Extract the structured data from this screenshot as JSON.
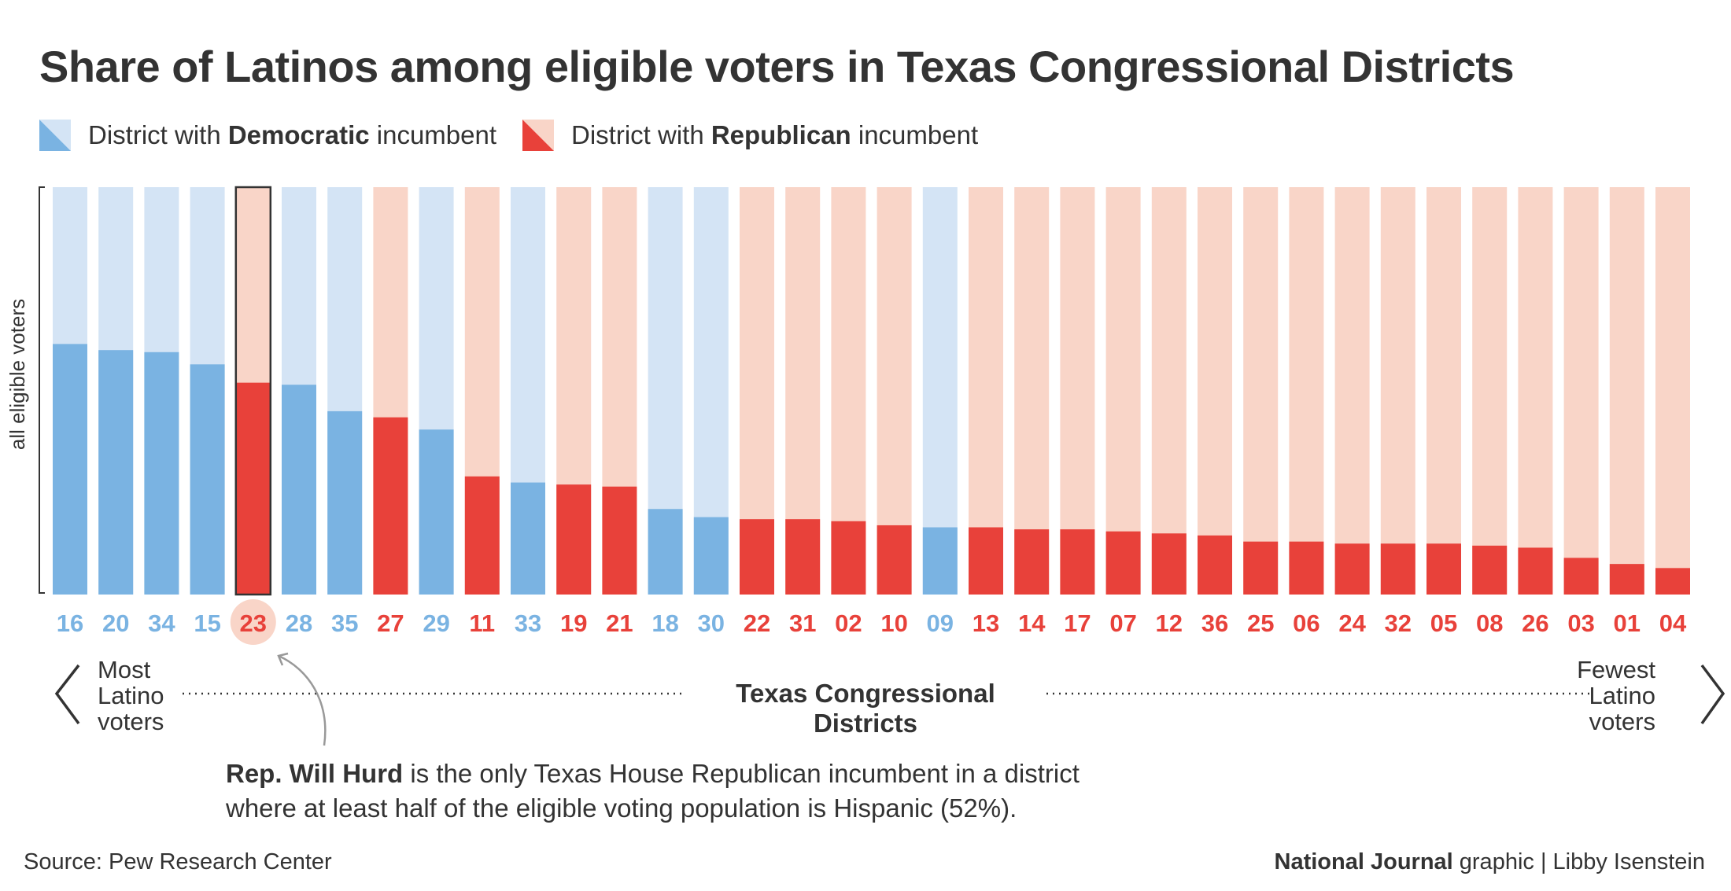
{
  "title": "Share of Latinos among eligible voters in Texas Congressional Districts",
  "legend": {
    "dem": {
      "prefix": "District with ",
      "bold": "Democratic",
      "suffix": " incumbent"
    },
    "rep": {
      "prefix": "District with ",
      "bold": "Republican",
      "suffix": " incumbent"
    }
  },
  "colors": {
    "dem_fill": "#7ab3e2",
    "dem_bg": "#d4e4f5",
    "rep_fill": "#e8413a",
    "rep_bg": "#f9d5c8",
    "highlight_circle": "#f9d5c8",
    "text": "#333333"
  },
  "chart_data": {
    "type": "bar",
    "ylabel": "all eligible voters",
    "ylim": [
      0,
      100
    ],
    "xlabel": "Texas Congressional Districts",
    "categories": [
      "16",
      "20",
      "34",
      "15",
      "23",
      "28",
      "35",
      "27",
      "29",
      "11",
      "33",
      "19",
      "21",
      "18",
      "30",
      "22",
      "31",
      "02",
      "10",
      "09",
      "13",
      "14",
      "17",
      "07",
      "12",
      "36",
      "25",
      "06",
      "24",
      "32",
      "05",
      "08",
      "26",
      "03",
      "01",
      "04"
    ],
    "party": [
      "D",
      "D",
      "D",
      "D",
      "R",
      "D",
      "D",
      "R",
      "D",
      "R",
      "D",
      "R",
      "R",
      "D",
      "D",
      "R",
      "R",
      "R",
      "R",
      "D",
      "R",
      "R",
      "R",
      "R",
      "R",
      "R",
      "R",
      "R",
      "R",
      "R",
      "R",
      "R",
      "R",
      "R",
      "R",
      "R"
    ],
    "values": [
      61.5,
      60,
      59.5,
      56.5,
      52,
      51.5,
      45,
      43.5,
      40.5,
      29,
      27.5,
      27,
      26.5,
      21,
      19,
      18.5,
      18.5,
      18,
      17,
      16.5,
      16.5,
      16,
      16,
      15.5,
      15,
      14.5,
      13,
      13,
      12.5,
      12.5,
      12.5,
      12,
      11.5,
      9,
      7.5,
      6.5
    ],
    "highlight": "23"
  },
  "nav": {
    "left": [
      "Most",
      "Latino",
      "voters"
    ],
    "right": [
      "Fewest",
      "Latino",
      "voters"
    ]
  },
  "annotation": {
    "bold": "Rep. Will Hurd",
    "line1": " is the only Texas House Republican incumbent in a district",
    "line2": "where at least half of the eligible voting population is Hispanic (52%)."
  },
  "footer": {
    "source": "Source: Pew Research Center",
    "credit_bold": "National Journal",
    "credit_rest": " graphic  |  Libby Isenstein"
  }
}
